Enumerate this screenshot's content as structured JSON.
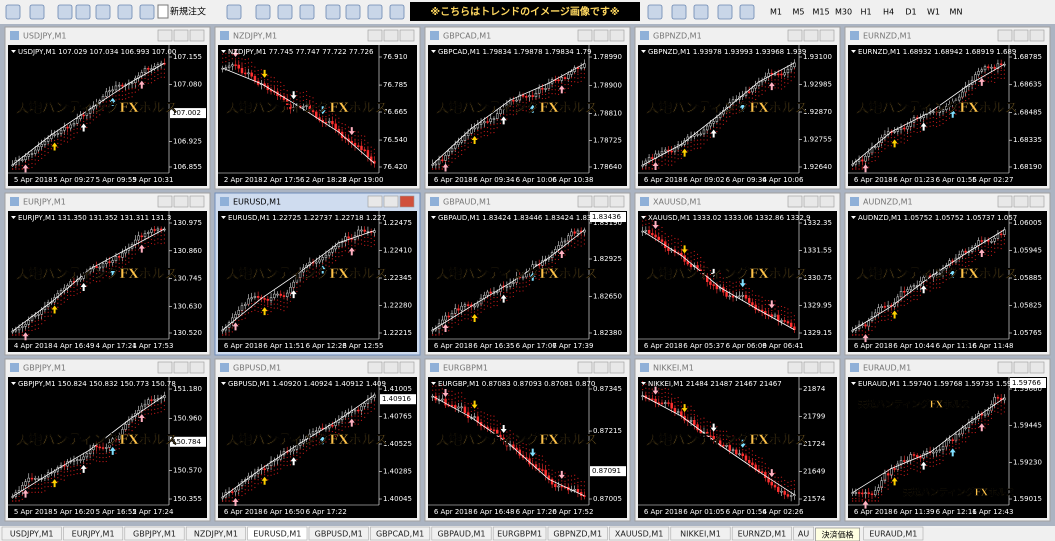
{
  "toolbar": {
    "new_order": "新規注文",
    "notice": "※こちらはトレンドのイメージ画像です※",
    "timeframes": [
      "M1",
      "M5",
      "M15",
      "M30",
      "H1",
      "H4",
      "D1",
      "W1",
      "MN"
    ]
  },
  "windows": [
    {
      "title": "USDJPY,M1",
      "header": "USDJPY,M1  107.029 107.034 106.993 107.00",
      "prices": [
        "107.155",
        "107.080",
        "106.925",
        "106.855"
      ],
      "highlight": "107.002",
      "times": [
        "5 Apr 2018",
        "5 Apr 09:27",
        "5 Apr 09:59",
        "5 Apr 10:31"
      ],
      "overlays": [
        "天地ハンティングFXホルス"
      ]
    },
    {
      "title": "NZDJPY,M1",
      "header": "NZDJPY,M1  77.745 77.747 77.722 77.726",
      "prices": [
        "76.910",
        "76.785",
        "76.665",
        "76.540",
        "76.420"
      ],
      "times": [
        "2 Apr 2018",
        "2 Apr 17:56",
        "2 Apr 18:28",
        "2 Apr 19:00"
      ],
      "overlays": [
        "天地ハンティングFXホルス"
      ]
    },
    {
      "title": "GBPCAD,M1",
      "header": "GBPCAD,M1  1.79834 1.79878 1.79834 1.79",
      "prices": [
        "1.78990",
        "1.78900",
        "1.78810",
        "1.78725",
        "1.78640"
      ],
      "times": [
        "6 Apr 2018",
        "6 Apr 09:34",
        "6 Apr 10:06",
        "6 Apr 10:38"
      ],
      "overlays": [
        "天地ハンティングFXホルス"
      ]
    },
    {
      "title": "GBPNZD,M1",
      "header": "GBPNZD,M1  1.93978 1.93993 1.93968 1.939",
      "prices": [
        "1.93100",
        "1.92985",
        "1.92870",
        "1.92755",
        "1.92640"
      ],
      "times": [
        "6 Apr 2018",
        "6 Apr 09:02",
        "6 Apr 09:34",
        "6 Apr 10:06"
      ],
      "overlays": [
        "天地ハンティングFXホルス"
      ]
    },
    {
      "title": "EURNZD,M1",
      "header": "EURNZD,M1  1.68932 1.68942 1.68919 1.689",
      "prices": [
        "1.68785",
        "1.68635",
        "1.68485",
        "1.68335",
        "1.68190"
      ],
      "times": [
        "6 Apr 2018",
        "6 Apr 01:23",
        "6 Apr 01:55",
        "6 Apr 02:27"
      ],
      "overlays": [
        "天地ハンティングFXホルス"
      ]
    },
    {
      "title": "EURJPY,M1",
      "header": "EURJPY,M1  131.350 131.352 131.311 131.3",
      "prices": [
        "130.975",
        "130.860",
        "130.745",
        "130.630",
        "130.520"
      ],
      "times": [
        "4 Apr 2018",
        "4 Apr 16:49",
        "4 Apr 17:21",
        "4 Apr 17:53"
      ],
      "overlays": [
        "天地ハンティングFXホルス"
      ]
    },
    {
      "title": "EURUSD,M1",
      "active": true,
      "header": "EURUSD,M1  1.22725 1.22737 1.22718 1.227",
      "prices": [
        "1.22475",
        "1.22410",
        "1.22345",
        "1.22280",
        "1.22215"
      ],
      "times": [
        "6 Apr 2018",
        "6 Apr 11:51",
        "6 Apr 12:23",
        "6 Apr 12:55"
      ],
      "overlays": [
        "天地ハンティングFXホルス"
      ]
    },
    {
      "title": "GBPAUD,M1",
      "header": "GBPAUD,M1  1.83424 1.83446 1.83424 1.83",
      "prices": [
        "1.83190",
        "1.82925",
        "1.82650",
        "1.82380"
      ],
      "highlight": "1.83436",
      "times": [
        "6 Apr 2018",
        "6 Apr 16:35",
        "6 Apr 17:07",
        "6 Apr 17:39"
      ],
      "overlays": [
        "天地ハンティングFXホルス"
      ]
    },
    {
      "title": "XAUUSD,M1",
      "header": "XAUUSD,M1  1333.02 1333.06 1332.86 1332.9",
      "prices": [
        "1332.35",
        "1331.55",
        "1330.75",
        "1329.95",
        "1329.15"
      ],
      "times": [
        "6 Apr 2018",
        "6 Apr 05:37",
        "6 Apr 06:09",
        "6 Apr 06:41"
      ],
      "overlays": [
        "天地ハンティングFXホルス"
      ]
    },
    {
      "title": "AUDNZD,M1",
      "header": "AUDNZD,M1  1.05752 1.05752 1.05737 1.057",
      "prices": [
        "1.06005",
        "1.05945",
        "1.05885",
        "1.05825",
        "1.05765"
      ],
      "times": [
        "6 Apr 2018",
        "6 Apr 10:44",
        "6 Apr 11:16",
        "6 Apr 11:48"
      ],
      "overlays": [
        "天地ハンティングFXホルス"
      ]
    },
    {
      "title": "GBPJPY,M1",
      "header": "GBPJPY,M1  150.824 150.832 150.773 150.78",
      "prices": [
        "151.180",
        "150.960",
        "150.570",
        "150.355"
      ],
      "highlight": "150.784",
      "times": [
        "5 Apr 2018",
        "5 Apr 16:20",
        "5 Apr 16:52",
        "5 Apr 17:24"
      ],
      "overlays": [
        "天地ハンティングFXホルス"
      ]
    },
    {
      "title": "GBPUSD,M1",
      "header": "GBPUSD,M1  1.40920 1.40924 1.40912 1.409",
      "prices": [
        "1.41005",
        "1.40765",
        "1.40525",
        "1.40285",
        "1.40045"
      ],
      "highlight": "1.40916",
      "times": [
        "6 Apr 2018",
        "6 Apr 16:50",
        "6 Apr 17:22"
      ],
      "overlays": [
        "天地ハンティングFXホルス"
      ]
    },
    {
      "title": "EURGBPM1",
      "header": "EURGBP,M1  0.87083 0.87093 0.87081 0.870",
      "prices": [
        "0.87345",
        "0.87215",
        "0.87005"
      ],
      "highlight": "0.87091",
      "times": [
        "6 Apr 2018",
        "6 Apr 16:48",
        "6 Apr 17:20",
        "6 Apr 17:52"
      ],
      "overlays": [
        "天地ハンティングFXホルス"
      ]
    },
    {
      "title": "NIKKEI,M1",
      "header": "NIKKEI,M1  21484 21487 21467 21467",
      "prices": [
        "21874",
        "21799",
        "21724",
        "21649",
        "21574"
      ],
      "times": [
        "6 Apr 2018",
        "6 Apr 01:05",
        "6 Apr 01:54",
        "6 Apr 02:26"
      ],
      "overlays": [
        "天地ハンティングFXホルス"
      ]
    },
    {
      "title": "EURAUD,M1",
      "header": "EURAUD,M1  1.59740 1.59768 1.59735 1.59",
      "prices": [
        "1.59660",
        "1.59445",
        "1.59230",
        "1.59015"
      ],
      "highlight": "1.59766",
      "times": [
        "6 Apr 2018",
        "6 Apr 11:39",
        "6 Apr 12:11",
        "6 Apr 12:43"
      ],
      "overlays": [
        "天地ハンティングFXホルス",
        "天地ハンティングFXホルス"
      ]
    }
  ],
  "tabs": [
    "USDJPY,M1",
    "EURJPY,M1",
    "GBPJPY,M1",
    "NZDJPY,M1",
    "EURUSD,M1",
    "GBPUSD,M1",
    "GBPCAD,M1",
    "GBPAUD,M1",
    "EURGBPM1",
    "GBPNZD,M1",
    "XAUUSD,M1",
    "NIKKEI,M1",
    "EURNZD,M1",
    "AU",
    "EURAUD,M1"
  ],
  "active_tab": 4,
  "tooltip": "決済価格"
}
